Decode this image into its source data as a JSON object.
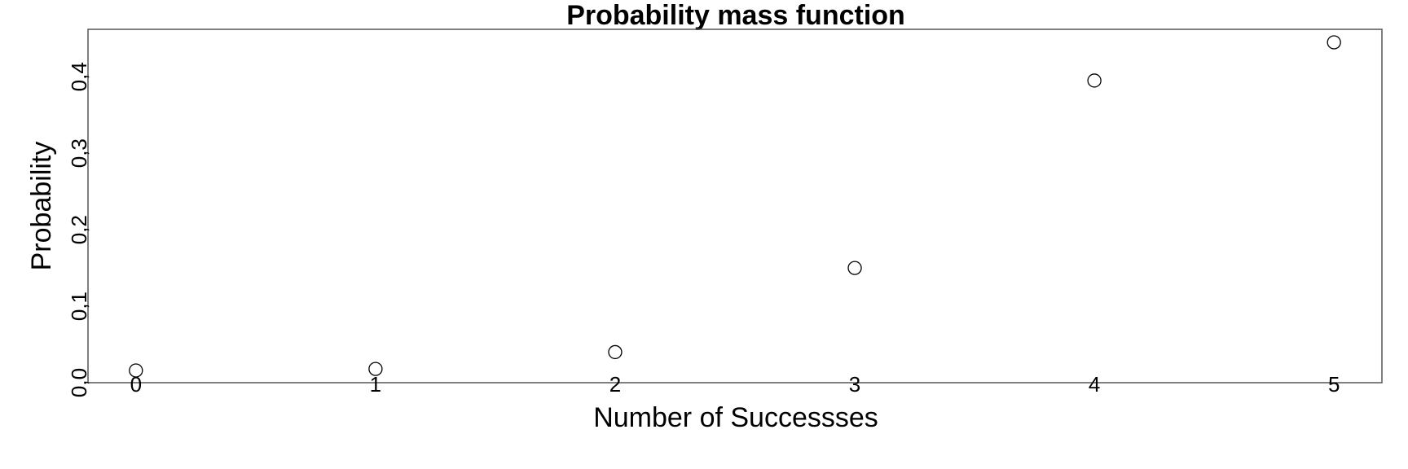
{
  "chart_data": {
    "type": "scatter",
    "title": "Probability mass function",
    "xlabel": "Number of Successses",
    "ylabel": "Probability",
    "x": [
      0,
      1,
      2,
      3,
      4,
      5
    ],
    "y": [
      0.016,
      0.018,
      0.04,
      0.15,
      0.395,
      0.445
    ],
    "x_ticks": [
      "0",
      "1",
      "2",
      "3",
      "4",
      "5"
    ],
    "y_ticks": [
      "0,0",
      "0,1",
      "0,2",
      "0,3",
      "0,4"
    ],
    "xlim": [
      -0.2,
      5.2
    ],
    "ylim": [
      0,
      0.462
    ],
    "grid": false,
    "marker": "open-circle",
    "colors": {
      "marker_edge": "#000000",
      "marker_fill": "#ffffff",
      "frame": "#555555"
    }
  }
}
